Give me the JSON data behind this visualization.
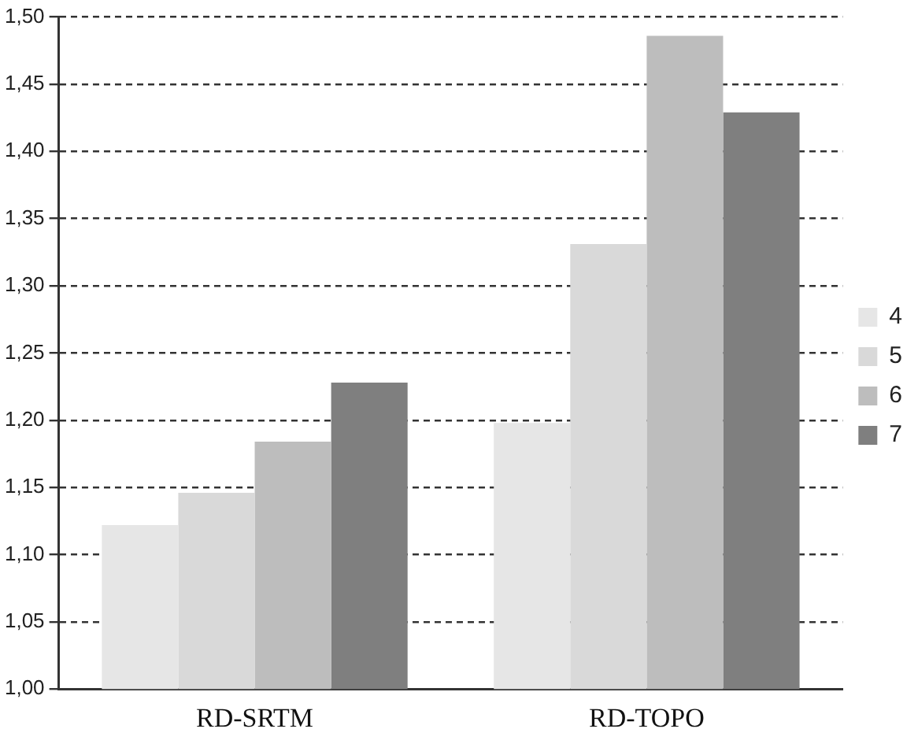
{
  "chart_data": {
    "type": "bar",
    "categories": [
      "RD-SRTM",
      "RD-TOPO"
    ],
    "series": [
      {
        "name": "4",
        "color": "#e6e6e6",
        "values": [
          1.122,
          1.198
        ]
      },
      {
        "name": "5",
        "color": "#d9d9d9",
        "values": [
          1.146,
          1.331
        ]
      },
      {
        "name": "6",
        "color": "#bdbdbd",
        "values": [
          1.184,
          1.486
        ]
      },
      {
        "name": "7",
        "color": "#7f7f7f",
        "values": [
          1.228,
          1.429
        ]
      }
    ],
    "ylim": [
      1.0,
      1.5
    ],
    "yticks": [
      {
        "value": 1.0,
        "label": "1,00"
      },
      {
        "value": 1.05,
        "label": "1,05"
      },
      {
        "value": 1.1,
        "label": "1,10"
      },
      {
        "value": 1.15,
        "label": "1,15"
      },
      {
        "value": 1.2,
        "label": "1,20"
      },
      {
        "value": 1.25,
        "label": "1,25"
      },
      {
        "value": 1.3,
        "label": "1,30"
      },
      {
        "value": 1.35,
        "label": "1,35"
      },
      {
        "value": 1.4,
        "label": "1,40"
      },
      {
        "value": 1.45,
        "label": "1,45"
      },
      {
        "value": 1.5,
        "label": "1,50"
      }
    ],
    "grid": "y",
    "legend": "right"
  }
}
